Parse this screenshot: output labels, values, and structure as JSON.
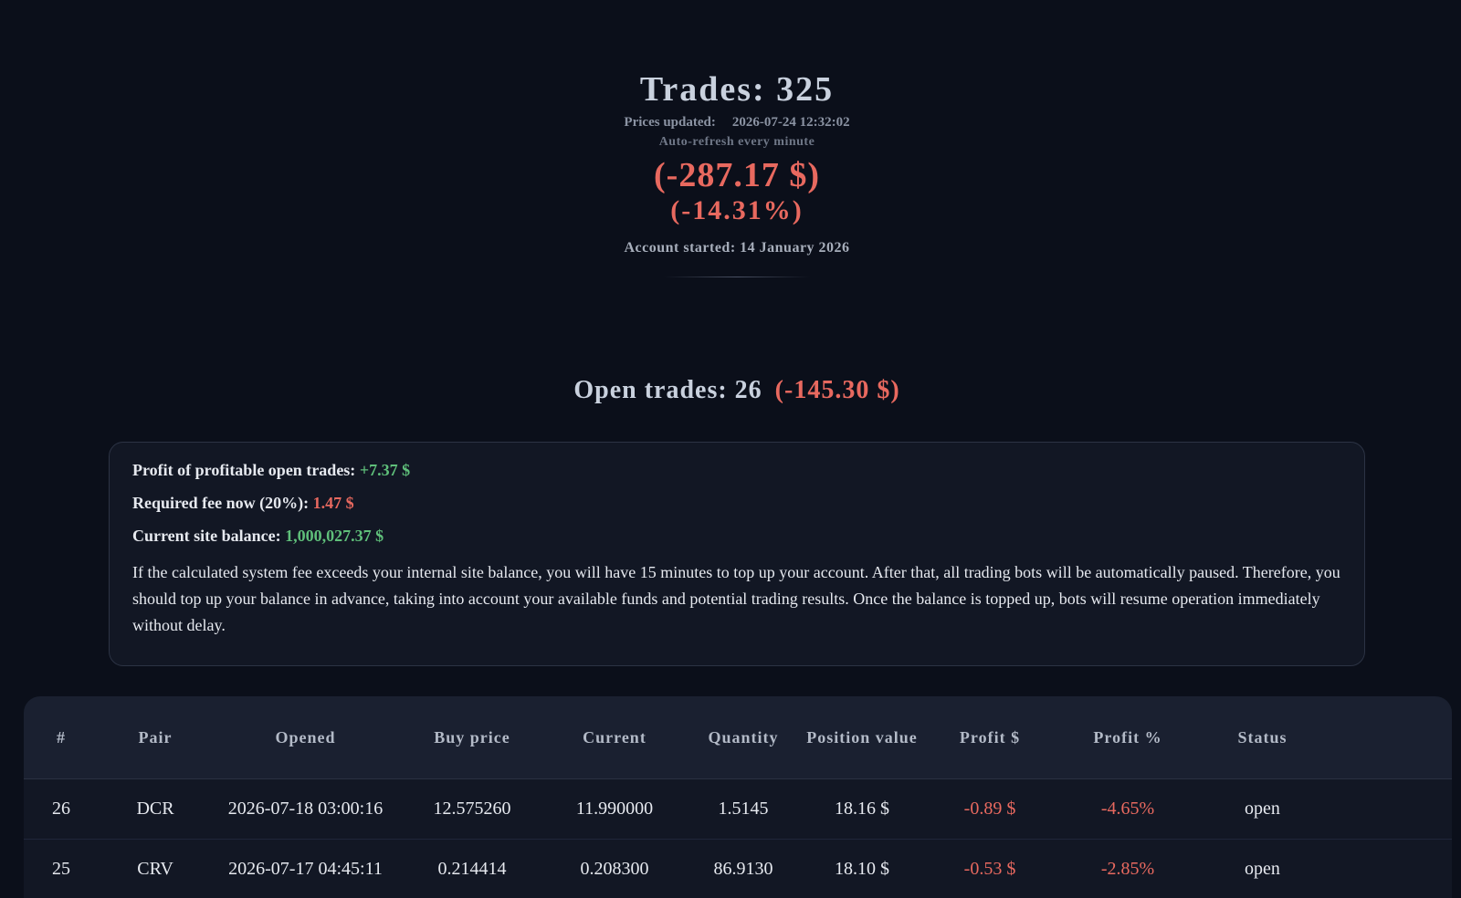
{
  "header": {
    "title": "Trades: 325",
    "prices_updated_label": "Prices updated:",
    "prices_updated": "2026-07-24 12:32:02",
    "auto_refresh": "Auto-refresh every minute",
    "total_profit": "(-287.17 $)",
    "total_percent": "(-14.31%)",
    "account_started": "Account started: 14 January 2026"
  },
  "open_trades": {
    "title": "Open trades: 26",
    "profit": "(-145.30 $)"
  },
  "info": {
    "lines": [
      {
        "label": "Profit of profitable open trades:",
        "value": "+7.37 $"
      },
      {
        "label": "Required fee now (20%):",
        "value": "1.47 $"
      },
      {
        "label": "Current site balance:",
        "value": "1,000,027.37 $"
      }
    ],
    "note": "If the calculated system fee exceeds your internal site balance, you will have 15 minutes to top up your account. After that, all trading bots will be automatically paused. Therefore, you should top up your balance in advance, taking into account your available funds and potential trading results. Once the balance is topped up, bots will resume operation immediately without delay."
  },
  "table": {
    "columns": [
      "#",
      "Pair",
      "Opened",
      "Buy price",
      "Current",
      "Quantity",
      "Position value",
      "Profit $",
      "Profit %",
      "Status"
    ],
    "rows": [
      [
        "26",
        "DCR",
        "2026-07-18 03:00:16",
        "12.575260",
        "11.990000",
        "1.5145",
        "18.16 $",
        "-0.89 $",
        "-4.65%",
        "open"
      ],
      [
        "25",
        "CRV",
        "2026-07-17 04:45:11",
        "0.214414",
        "0.208300",
        "86.9130",
        "18.10 $",
        "-0.53 $",
        "-2.85%",
        "open"
      ]
    ]
  }
}
